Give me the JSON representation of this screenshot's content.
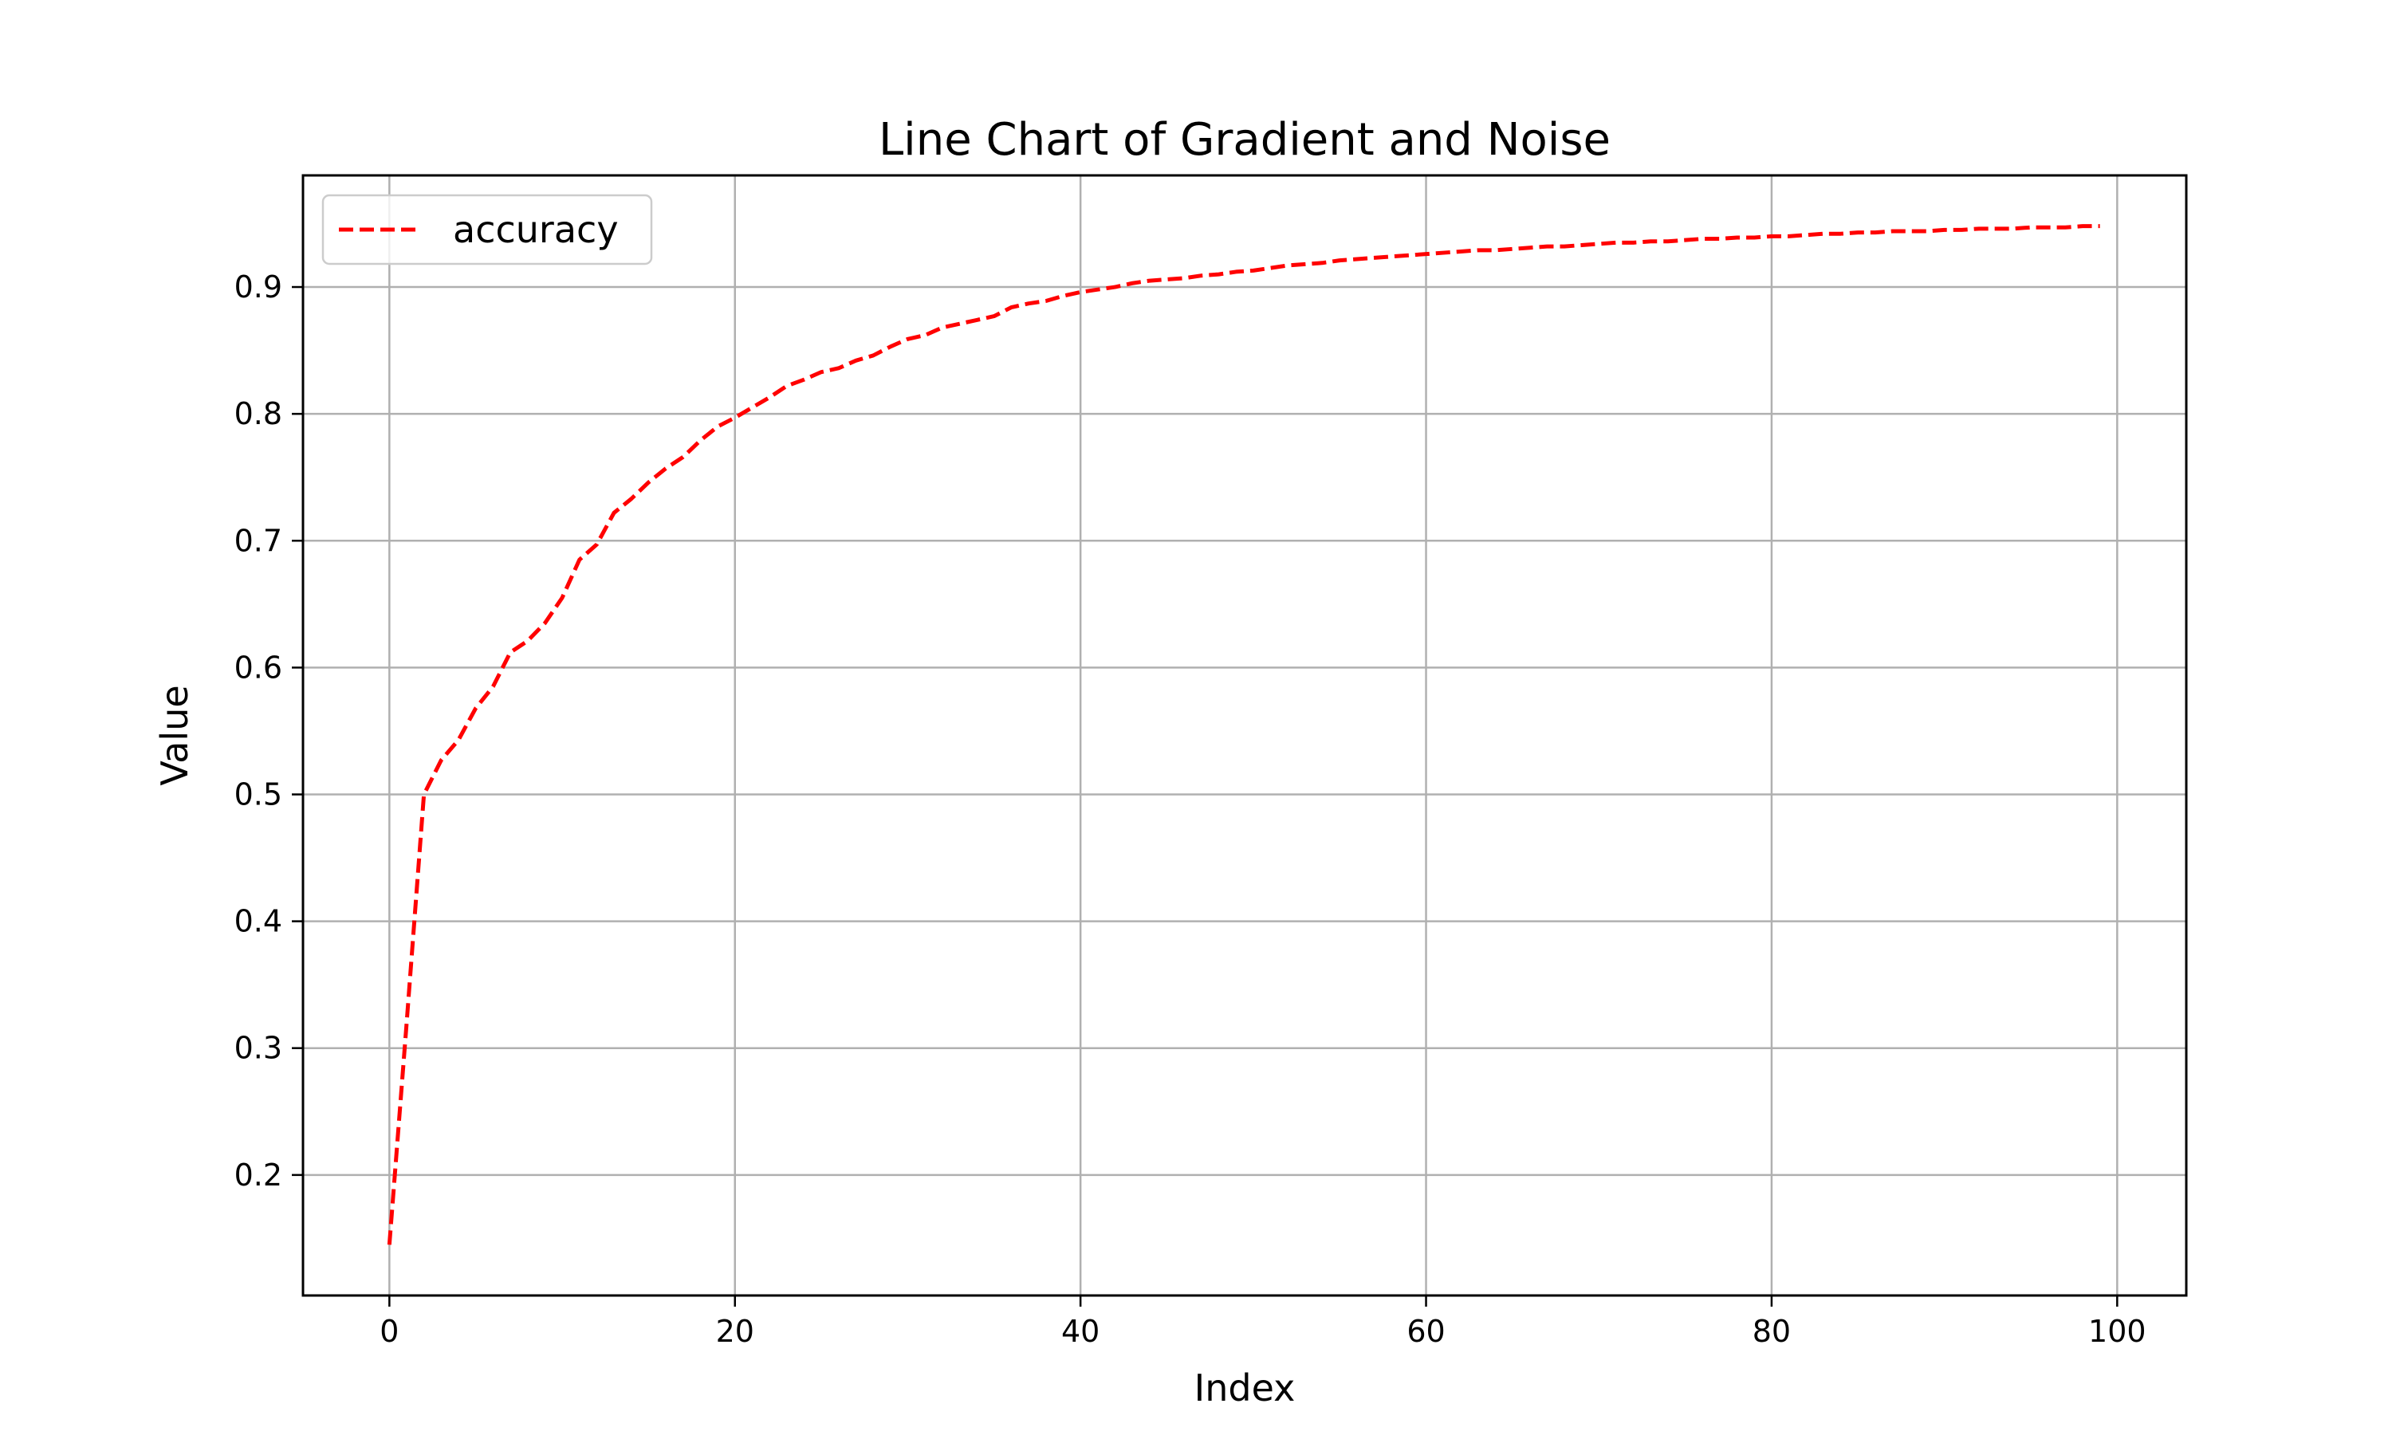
{
  "chart_data": {
    "type": "line",
    "title": "Line Chart of Gradient and Noise",
    "xlabel": "Index",
    "ylabel": "Value",
    "xlim": [
      -5,
      104
    ],
    "ylim": [
      0.105,
      0.988
    ],
    "xticks": [
      0,
      20,
      40,
      60,
      80,
      100
    ],
    "yticks": [
      0.2,
      0.3,
      0.4,
      0.5,
      0.6,
      0.7,
      0.8,
      0.9
    ],
    "grid": true,
    "legend_position": "top-left",
    "series": [
      {
        "name": "accuracy",
        "color": "#ff0000",
        "style": "dashed",
        "x": [
          0,
          1,
          2,
          3,
          4,
          5,
          6,
          7,
          8,
          9,
          10,
          11,
          12,
          13,
          14,
          15,
          16,
          17,
          18,
          19,
          20,
          21,
          22,
          23,
          24,
          25,
          26,
          27,
          28,
          29,
          30,
          31,
          32,
          33,
          34,
          35,
          36,
          37,
          38,
          39,
          40,
          41,
          42,
          43,
          44,
          45,
          46,
          47,
          48,
          49,
          50,
          51,
          52,
          53,
          54,
          55,
          56,
          57,
          58,
          59,
          60,
          61,
          62,
          63,
          64,
          65,
          66,
          67,
          68,
          69,
          70,
          71,
          72,
          73,
          74,
          75,
          76,
          77,
          78,
          79,
          80,
          81,
          82,
          83,
          84,
          85,
          86,
          87,
          88,
          89,
          90,
          91,
          92,
          93,
          94,
          95,
          96,
          97,
          98,
          99
        ],
        "values": [
          0.145,
          0.32,
          0.5,
          0.527,
          0.543,
          0.568,
          0.585,
          0.612,
          0.621,
          0.635,
          0.655,
          0.685,
          0.697,
          0.722,
          0.733,
          0.746,
          0.757,
          0.766,
          0.779,
          0.79,
          0.797,
          0.805,
          0.813,
          0.822,
          0.827,
          0.833,
          0.836,
          0.842,
          0.846,
          0.853,
          0.859,
          0.862,
          0.868,
          0.871,
          0.874,
          0.877,
          0.884,
          0.887,
          0.889,
          0.893,
          0.896,
          0.898,
          0.9,
          0.903,
          0.905,
          0.906,
          0.907,
          0.909,
          0.91,
          0.912,
          0.913,
          0.915,
          0.917,
          0.918,
          0.919,
          0.921,
          0.922,
          0.923,
          0.924,
          0.925,
          0.926,
          0.927,
          0.928,
          0.929,
          0.929,
          0.93,
          0.931,
          0.932,
          0.932,
          0.933,
          0.934,
          0.935,
          0.935,
          0.936,
          0.936,
          0.937,
          0.938,
          0.938,
          0.939,
          0.939,
          0.94,
          0.94,
          0.941,
          0.942,
          0.942,
          0.943,
          0.943,
          0.944,
          0.944,
          0.944,
          0.945,
          0.945,
          0.946,
          0.946,
          0.946,
          0.947,
          0.947,
          0.947,
          0.948,
          0.948
        ]
      }
    ]
  }
}
